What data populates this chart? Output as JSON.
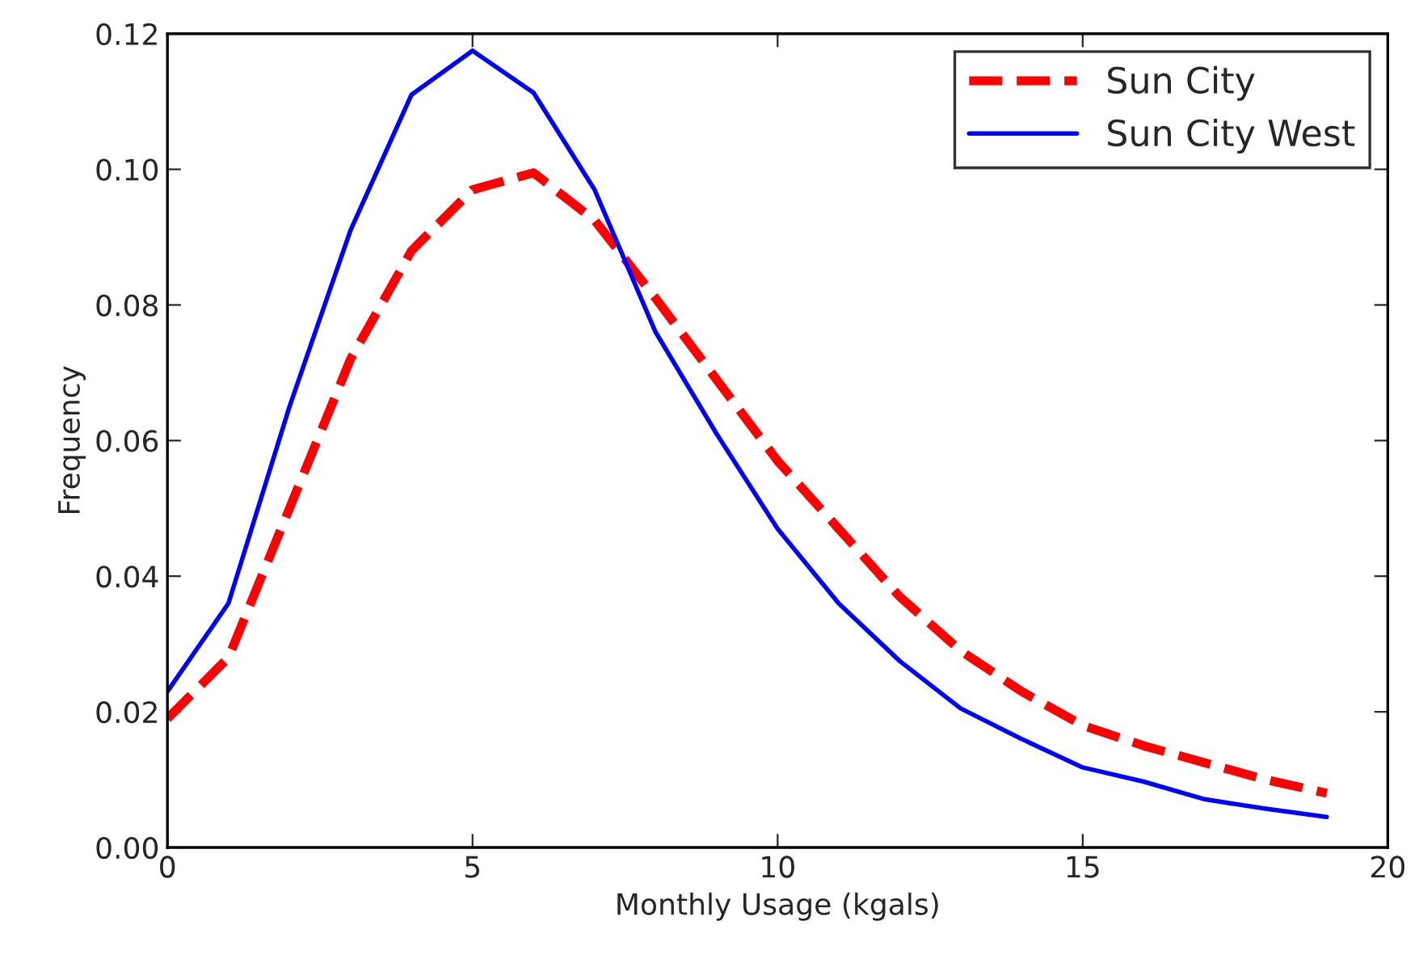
{
  "chart_data": {
    "type": "line",
    "xlabel": "Monthly Usage (kgals)",
    "ylabel": "Frequency",
    "x": [
      0,
      1,
      2,
      3,
      4,
      5,
      6,
      7,
      8,
      9,
      10,
      11,
      12,
      13,
      14,
      15,
      16,
      17,
      18,
      19
    ],
    "series": [
      {
        "name": "Sun City",
        "color": "#ff0000",
        "line_style": "dashed",
        "values": [
          0.019,
          0.028,
          0.05,
          0.072,
          0.088,
          0.097,
          0.0995,
          0.0925,
          0.081,
          0.069,
          0.057,
          0.047,
          0.037,
          0.029,
          0.023,
          0.018,
          0.015,
          0.0125,
          0.01,
          0.008
        ]
      },
      {
        "name": "Sun City West",
        "color": "#0000ff",
        "line_style": "solid",
        "values": [
          0.023,
          0.036,
          0.065,
          0.091,
          0.111,
          0.1175,
          0.1113,
          0.097,
          0.076,
          0.061,
          0.047,
          0.036,
          0.0275,
          0.0205,
          0.016,
          0.0118,
          0.0097,
          0.0071,
          0.0057,
          0.0045
        ]
      }
    ],
    "xlim": [
      0,
      20
    ],
    "xticks": [
      0,
      5,
      10,
      15,
      20
    ],
    "ylim": [
      0,
      0.12
    ],
    "yticks": [
      {
        "value": 0,
        "label": "0.00"
      },
      {
        "value": 0.02,
        "label": "0.02"
      },
      {
        "value": 0.04,
        "label": "0.04"
      },
      {
        "value": 0.06,
        "label": "0.06"
      },
      {
        "value": 0.08,
        "label": "0.08"
      },
      {
        "value": 0.1,
        "label": "0.10"
      },
      {
        "value": 0.12,
        "label": "0.12"
      }
    ],
    "legend": "top right",
    "grid": false,
    "marker": "none"
  }
}
